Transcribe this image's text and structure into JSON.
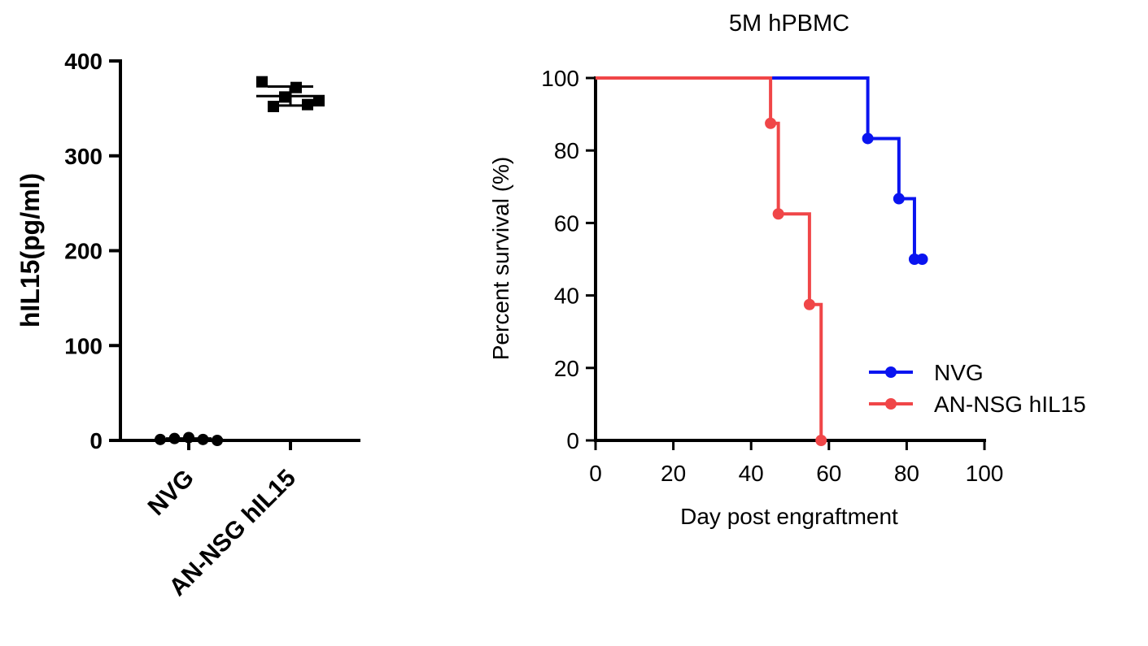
{
  "chart_data": [
    {
      "type": "scatter",
      "title": "",
      "xlabel": "",
      "ylabel": "hIL15(pg/ml)",
      "ylim": [
        0,
        400
      ],
      "yticks": [
        0,
        100,
        200,
        300,
        400
      ],
      "categories": [
        "NVG",
        "AN-NSG hIL15"
      ],
      "series": [
        {
          "category": "NVG",
          "points": [
            1,
            2,
            3,
            1,
            0
          ],
          "mean": 1,
          "sd": 1,
          "color": "#000000"
        },
        {
          "category": "AN-NSG hIL15",
          "points": [
            378,
            352,
            362,
            372,
            354,
            358
          ],
          "mean": 363,
          "sd": 10,
          "color": "#000000"
        }
      ]
    },
    {
      "type": "line",
      "title": "5M hPBMC",
      "xlabel": "Day post engraftment",
      "ylabel": "Percent survival (%)",
      "xlim": [
        0,
        100
      ],
      "ylim": [
        0,
        100
      ],
      "xticks": [
        0,
        20,
        40,
        60,
        80,
        100
      ],
      "yticks": [
        0,
        20,
        40,
        60,
        80,
        100
      ],
      "legend_position": "bottom-right",
      "series": [
        {
          "name": "NVG",
          "color": "#0a14f0",
          "steps": [
            [
              0,
              100
            ],
            [
              70,
              83.3
            ],
            [
              78,
              66.7
            ],
            [
              82,
              50
            ],
            [
              84,
              50
            ]
          ],
          "censor_marks": [
            [
              70,
              83.3
            ],
            [
              78,
              66.7
            ],
            [
              82,
              50
            ],
            [
              84,
              50
            ]
          ]
        },
        {
          "name": "AN-NSG hIL15",
          "color": "#f04648",
          "steps": [
            [
              0,
              100
            ],
            [
              45,
              87.5
            ],
            [
              47,
              62.5
            ],
            [
              55,
              37.5
            ],
            [
              58,
              0
            ]
          ],
          "censor_marks": [
            [
              45,
              87.5
            ],
            [
              47,
              62.5
            ],
            [
              55,
              37.5
            ],
            [
              58,
              0
            ]
          ]
        }
      ]
    }
  ]
}
